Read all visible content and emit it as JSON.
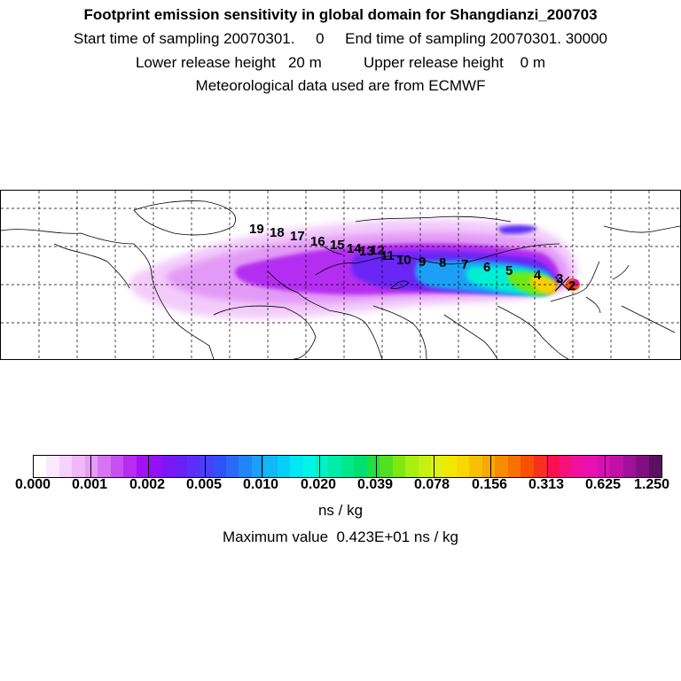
{
  "header": {
    "title": "Footprint emission sensitivity in global domain for Shangdianzi_200703",
    "line2": "Start time of sampling 20070301.     0     End time of sampling 20070301. 30000",
    "line3": "Lower release height   20 m          Upper release height    0 m",
    "line4": "Meteorological data used are from ECMWF"
  },
  "map": {
    "trajectory_labels": [
      "19",
      "18",
      "17",
      "16",
      "15",
      "14",
      "13",
      "12",
      "11",
      "10",
      "9",
      "8",
      "7",
      "6",
      "5",
      "4",
      "3",
      "2"
    ]
  },
  "colorbar": {
    "tick_labels": [
      "0.000",
      "0.001",
      "0.002",
      "0.005",
      "0.010",
      "0.020",
      "0.039",
      "0.078",
      "0.156",
      "0.313",
      "0.625",
      "1.250"
    ],
    "colors": [
      "#ffffff",
      "#fbeaff",
      "#f6d2ff",
      "#f0b8fb",
      "#e59df6",
      "#d774f2",
      "#c850f0",
      "#b72cf0",
      "#a310f2",
      "#9510f5",
      "#7a18f5",
      "#6a20f5",
      "#5a30f8",
      "#4840f8",
      "#3050fa",
      "#2a6af7",
      "#2085f7",
      "#1aa0f7",
      "#10b8f7",
      "#08cff7",
      "#00e8f2",
      "#00f5e6",
      "#00f0c8",
      "#00ecaa",
      "#00e88c",
      "#00e070",
      "#20e040",
      "#50e020",
      "#80e810",
      "#a8f010",
      "#c8f010",
      "#e0f010",
      "#f0e800",
      "#f8d800",
      "#f8c000",
      "#f8a800",
      "#f88c00",
      "#f87000",
      "#f85000",
      "#f83020",
      "#f81050",
      "#f8107c",
      "#f010a0",
      "#e810b0",
      "#d810b4",
      "#c010a8",
      "#a0109a",
      "#801080",
      "#5a1060"
    ],
    "unit": "ns / kg",
    "max_value_text": "Maximum value  0.423E+01 ns / kg"
  }
}
